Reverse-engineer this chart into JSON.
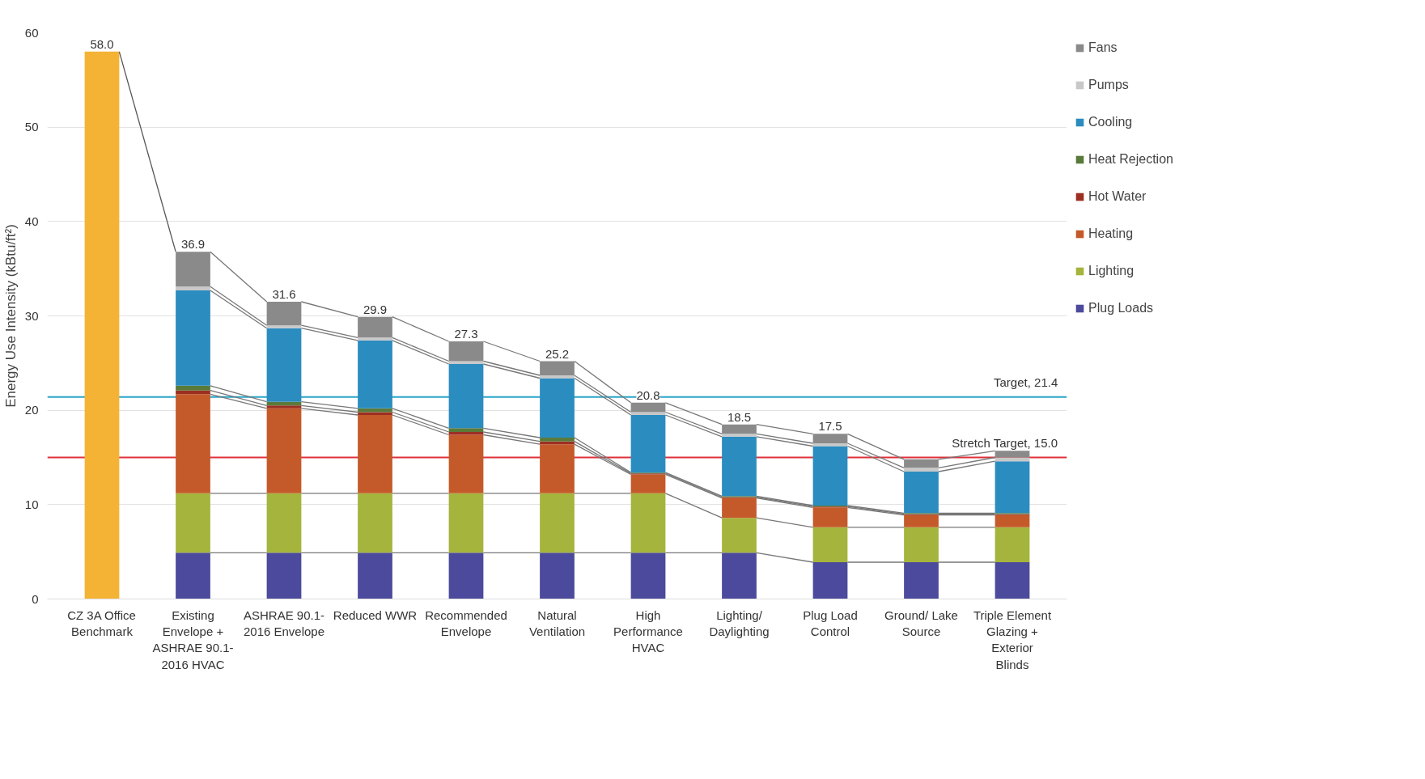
{
  "chart_data": {
    "type": "bar",
    "stacked": true,
    "ylabel": "Energy Use Intensity (kBtu/ft²)",
    "categories": [
      "CZ 3A Office Benchmark",
      "Existing Envelope + ASHRAE 90.1- 2016 HVAC",
      "ASHRAE 90.1- 2016 Envelope",
      "Reduced WWR",
      "Recommended Envelope",
      "Natural Ventilation",
      "High Performance HVAC",
      "Lighting/ Daylighting",
      "Plug Load Control",
      "Ground/ Lake Source",
      "Triple Element Glazing + Exterior Blinds"
    ],
    "series": [
      {
        "color": "#f5b335",
        "values": [
          58.0,
          null,
          null,
          null,
          null,
          null,
          null,
          null,
          null,
          null,
          null
        ]
      },
      {
        "name": "Plug Loads",
        "color": "#4b4a9c",
        "values": [
          null,
          4.9,
          4.9,
          4.9,
          4.9,
          4.9,
          4.9,
          4.9,
          3.9,
          3.9,
          3.9
        ]
      },
      {
        "name": "Lighting",
        "color": "#a5b43c",
        "values": [
          null,
          6.3,
          6.3,
          6.3,
          6.3,
          6.3,
          6.3,
          3.7,
          3.7,
          3.7,
          3.7
        ]
      },
      {
        "name": "Heating",
        "color": "#c45a2a",
        "values": [
          null,
          10.5,
          9.0,
          8.3,
          6.2,
          5.2,
          2.0,
          2.1,
          2.1,
          1.3,
          1.3
        ]
      },
      {
        "name": "Hot Water",
        "color": "#9c2f22",
        "values": [
          null,
          0.4,
          0.3,
          0.3,
          0.3,
          0.3,
          0.1,
          0.1,
          0.1,
          0.1,
          0.1
        ]
      },
      {
        "name": "Heat Rejection",
        "color": "#5a7a3a",
        "values": [
          null,
          0.5,
          0.4,
          0.4,
          0.4,
          0.4,
          0.1,
          0.1,
          0.1,
          0.1,
          0.1
        ]
      },
      {
        "name": "Cooling",
        "color": "#2b8cbf",
        "values": [
          null,
          10.1,
          7.8,
          7.2,
          6.8,
          6.3,
          6.1,
          6.3,
          6.3,
          4.4,
          5.5
        ]
      },
      {
        "name": "Pumps",
        "color": "#c8c8c8",
        "values": [
          null,
          0.4,
          0.3,
          0.3,
          0.3,
          0.3,
          0.3,
          0.3,
          0.3,
          0.4,
          0.4
        ]
      },
      {
        "name": "Fans",
        "color": "#8a8a8a",
        "values": [
          null,
          3.7,
          2.5,
          2.2,
          2.1,
          1.5,
          1.0,
          1.0,
          1.0,
          0.9,
          0.7
        ]
      }
    ],
    "totals": [
      "58.0",
      "36.9",
      "31.6",
      "29.9",
      "27.3",
      "25.2",
      "20.8",
      "18.5",
      "17.5",
      null,
      null
    ],
    "ylim": [
      0,
      60
    ],
    "yticks": [
      0,
      10,
      20,
      30,
      40,
      50,
      60
    ],
    "grid": "y",
    "legend": "right",
    "ref_lines": [
      {
        "axis": "y",
        "value": 21.4,
        "label": "Target, 21.4",
        "color": "#2aa6c8"
      },
      {
        "axis": "y",
        "value": 15.0,
        "label": "Stretch Target, 15.0",
        "color": "#e0303a"
      }
    ]
  }
}
